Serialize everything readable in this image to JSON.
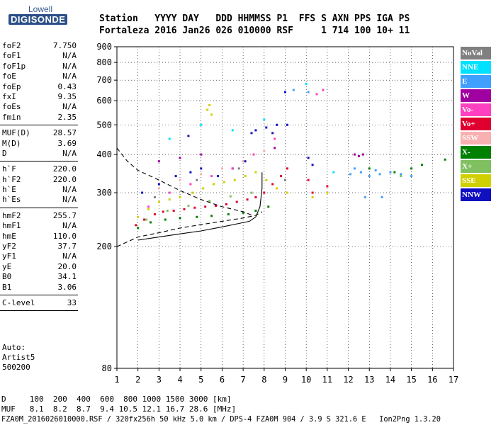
{
  "logo": {
    "top": "Lowell",
    "bottom": "DIGISONDE"
  },
  "header": {
    "row1": "Station   YYYY DAY   DDD HHMMSS P1  FFS S AXN PPS IGA PS",
    "row2": "Fortaleza 2016 Jan26 026 010000 RSF     1 714 100 10+ 11"
  },
  "params": {
    "group1": [
      {
        "label": "foF2",
        "value": "7.750"
      },
      {
        "label": "foF1",
        "value": "N/A"
      },
      {
        "label": "foF1p",
        "value": "N/A"
      },
      {
        "label": "foE",
        "value": "N/A"
      },
      {
        "label": "foEp",
        "value": "0.43"
      },
      {
        "label": "fxI",
        "value": "9.35"
      },
      {
        "label": "foEs",
        "value": "N/A"
      },
      {
        "label": "fmin",
        "value": "2.35"
      }
    ],
    "group2": [
      {
        "label": "MUF(D)",
        "value": "28.57"
      },
      {
        "label": "M(D)",
        "value": "3.69"
      },
      {
        "label": "D",
        "value": "N/A"
      }
    ],
    "group3": [
      {
        "label": "h`F",
        "value": "220.0"
      },
      {
        "label": "h`F2",
        "value": "220.0"
      },
      {
        "label": "h`E",
        "value": "N/A"
      },
      {
        "label": "h`Es",
        "value": "N/A"
      }
    ],
    "group4": [
      {
        "label": "hmF2",
        "value": "255.7"
      },
      {
        "label": "hmF1",
        "value": "N/A"
      },
      {
        "label": "hmE",
        "value": "110.0"
      },
      {
        "label": "yF2",
        "value": "37.7"
      },
      {
        "label": "yF1",
        "value": "N/A"
      },
      {
        "label": "yE",
        "value": "20.0"
      },
      {
        "label": "B0",
        "value": "34.1"
      },
      {
        "label": "B1",
        "value": "3.06"
      }
    ],
    "group5": [
      {
        "label": "C-level",
        "value": "33"
      }
    ]
  },
  "auto": {
    "line1": "Auto:",
    "line2": "Artist5",
    "line3": "500200"
  },
  "legend": [
    {
      "label": "NoVal",
      "color": "#808080"
    },
    {
      "label": "NNE",
      "color": "#00e0ff"
    },
    {
      "label": "E",
      "color": "#40a0ff"
    },
    {
      "label": "W",
      "color": "#a000a0"
    },
    {
      "label": "Vo-",
      "color": "#ff40c0"
    },
    {
      "label": "Vo+",
      "color": "#e00030"
    },
    {
      "label": "SSW",
      "color": "#f8b0b0"
    },
    {
      "label": "X-",
      "color": "#008000"
    },
    {
      "label": "X+",
      "color": "#80c060"
    },
    {
      "label": "SSE",
      "color": "#d0d000"
    },
    {
      "label": "NNW",
      "color": "#1010c0"
    }
  ],
  "footer": {
    "d_row": "D     100  200  400  600  800 1000 1500 3000 [km]",
    "muf_row": "MUF   8.1  8.2  8.7  9.4 10.5 12.1 16.7 28.6 [MHz]",
    "file_row": "FZA0M_2016026010000.RSF / 320fx256h 50 kHz 5.0 km / DPS-4 FZA0M 904 / 3.9 S 321.6 E   Ion2Png 1.3.20"
  },
  "chart_data": {
    "type": "scatter",
    "xlabel": "",
    "ylabel": "",
    "xlim": [
      1,
      17
    ],
    "ylim": [
      80,
      900
    ],
    "xticks": [
      1,
      2,
      3,
      4,
      5,
      6,
      7,
      8,
      9,
      10,
      11,
      12,
      13,
      14,
      15,
      16,
      17
    ],
    "yticks": [
      80,
      200,
      300,
      400,
      500,
      600,
      700,
      800,
      900
    ],
    "xscale": "linear",
    "yscale": "log",
    "grid": "dotted",
    "legend_placement": "right",
    "series": [
      {
        "color": "#e00030",
        "points": [
          [
            1.9,
            235
          ],
          [
            2.3,
            245
          ],
          [
            2.8,
            255
          ],
          [
            3.2,
            260
          ],
          [
            3.7,
            262
          ],
          [
            4.2,
            265
          ],
          [
            4.7,
            268
          ],
          [
            5.2,
            270
          ],
          [
            5.7,
            272
          ],
          [
            6.2,
            275
          ],
          [
            6.7,
            280
          ],
          [
            7.2,
            285
          ],
          [
            7.6,
            290
          ],
          [
            8.0,
            300
          ],
          [
            8.4,
            320
          ],
          [
            8.8,
            340
          ],
          [
            9.1,
            360
          ],
          [
            10.1,
            330
          ],
          [
            10.3,
            300
          ],
          [
            11.0,
            315
          ]
        ]
      },
      {
        "color": "#d0d000",
        "points": [
          [
            2.0,
            250
          ],
          [
            2.5,
            265
          ],
          [
            3.0,
            280
          ],
          [
            3.5,
            285
          ],
          [
            4.0,
            290
          ],
          [
            4.6,
            300
          ],
          [
            5.1,
            310
          ],
          [
            5.6,
            320
          ],
          [
            6.1,
            325
          ],
          [
            6.6,
            330
          ],
          [
            7.1,
            340
          ],
          [
            7.6,
            350
          ],
          [
            8.1,
            330
          ],
          [
            8.6,
            310
          ],
          [
            9.1,
            300
          ],
          [
            10.3,
            290
          ],
          [
            11.0,
            300
          ],
          [
            5.3,
            560
          ],
          [
            5.4,
            580
          ],
          [
            5.5,
            540
          ]
        ]
      },
      {
        "color": "#1010c0",
        "points": [
          [
            2.2,
            300
          ],
          [
            3.0,
            320
          ],
          [
            3.8,
            340
          ],
          [
            4.5,
            350
          ],
          [
            5.0,
            360
          ],
          [
            5.8,
            340
          ],
          [
            6.5,
            360
          ],
          [
            7.1,
            380
          ],
          [
            7.6,
            480
          ],
          [
            8.1,
            490
          ],
          [
            8.6,
            500
          ],
          [
            9.1,
            500
          ],
          [
            10.1,
            390
          ],
          [
            10.3,
            370
          ],
          [
            9.0,
            640
          ],
          [
            8.4,
            470
          ],
          [
            7.4,
            470
          ],
          [
            4.4,
            460
          ]
        ]
      },
      {
        "color": "#008000",
        "points": [
          [
            2.0,
            230
          ],
          [
            2.6,
            240
          ],
          [
            3.3,
            245
          ],
          [
            4.0,
            248
          ],
          [
            4.8,
            250
          ],
          [
            5.5,
            252
          ],
          [
            6.3,
            255
          ],
          [
            7.0,
            258
          ],
          [
            7.6,
            262
          ],
          [
            8.2,
            270
          ],
          [
            14.2,
            350
          ],
          [
            15.0,
            360
          ],
          [
            15.5,
            370
          ],
          [
            16.6,
            385
          ],
          [
            13.0,
            360
          ]
        ]
      },
      {
        "color": "#40a0ff",
        "points": [
          [
            12.1,
            345
          ],
          [
            12.6,
            350
          ],
          [
            13.0,
            340
          ],
          [
            13.5,
            345
          ],
          [
            14.0,
            350
          ],
          [
            14.5,
            345
          ],
          [
            15.0,
            340
          ],
          [
            12.3,
            360
          ],
          [
            13.3,
            355
          ],
          [
            12.8,
            290
          ],
          [
            13.6,
            290
          ],
          [
            9.4,
            650
          ],
          [
            10.1,
            640
          ]
        ]
      },
      {
        "color": "#a000a0",
        "points": [
          [
            12.3,
            400
          ],
          [
            12.5,
            395
          ],
          [
            12.7,
            400
          ],
          [
            3.0,
            380
          ],
          [
            4.0,
            390
          ],
          [
            5.0,
            400
          ],
          [
            8.5,
            420
          ]
        ]
      },
      {
        "color": "#ff40c0",
        "points": [
          [
            2.5,
            270
          ],
          [
            3.5,
            300
          ],
          [
            4.5,
            320
          ],
          [
            5.5,
            340
          ],
          [
            6.5,
            360
          ],
          [
            7.5,
            400
          ],
          [
            8.5,
            450
          ],
          [
            10.8,
            650
          ],
          [
            10.5,
            630
          ]
        ]
      },
      {
        "color": "#f8b0b0",
        "points": [
          [
            3.0,
            310
          ],
          [
            4.0,
            330
          ],
          [
            5.0,
            345
          ],
          [
            6.0,
            360
          ],
          [
            7.0,
            380
          ],
          [
            8.0,
            410
          ]
        ]
      },
      {
        "color": "#80c060",
        "points": [
          [
            2.4,
            245
          ],
          [
            3.4,
            262
          ],
          [
            4.4,
            272
          ],
          [
            5.4,
            282
          ],
          [
            6.4,
            292
          ],
          [
            7.4,
            300
          ],
          [
            14.5,
            340
          ]
        ]
      },
      {
        "color": "#00e0ff",
        "points": [
          [
            3.5,
            450
          ],
          [
            5.0,
            500
          ],
          [
            6.5,
            480
          ],
          [
            8.0,
            520
          ],
          [
            10.0,
            680
          ],
          [
            11.3,
            350
          ]
        ]
      },
      {
        "color": "#808080",
        "points": [
          [
            2.8,
            290
          ],
          [
            4.8,
            330
          ],
          [
            6.8,
            360
          ],
          [
            9.0,
            330
          ]
        ]
      }
    ],
    "curves": [
      {
        "style": "solid",
        "points": [
          [
            2.0,
            210
          ],
          [
            3.0,
            215
          ],
          [
            4.0,
            220
          ],
          [
            5.0,
            225
          ],
          [
            6.0,
            232
          ],
          [
            6.8,
            238
          ],
          [
            7.3,
            242
          ],
          [
            7.6,
            250
          ],
          [
            7.8,
            270
          ],
          [
            7.9,
            310
          ],
          [
            7.9,
            350
          ]
        ]
      },
      {
        "style": "dashed",
        "points": [
          [
            1.0,
            420
          ],
          [
            1.5,
            380
          ],
          [
            2.0,
            355
          ],
          [
            3.0,
            330
          ],
          [
            4.0,
            305
          ],
          [
            5.0,
            285
          ],
          [
            6.0,
            270
          ],
          [
            7.0,
            260
          ],
          [
            7.5,
            252
          ]
        ]
      },
      {
        "style": "dashed",
        "points": [
          [
            1.0,
            200
          ],
          [
            2.0,
            215
          ],
          [
            3.0,
            222
          ],
          [
            4.0,
            230
          ],
          [
            5.0,
            236
          ],
          [
            6.0,
            242
          ],
          [
            7.0,
            248
          ],
          [
            7.6,
            253
          ],
          [
            7.9,
            260
          ]
        ]
      }
    ]
  }
}
